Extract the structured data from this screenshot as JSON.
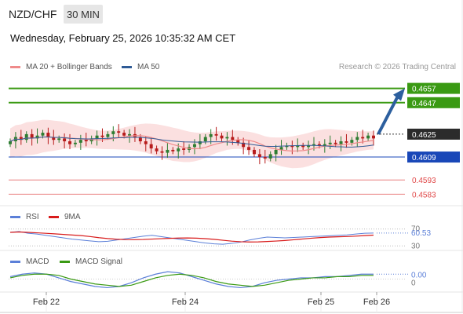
{
  "header": {
    "pair": "NZD/CHF",
    "timeframe": "30 MIN",
    "timestamp": "Wednesday, February 25, 2026 10:35:32 AM CET"
  },
  "legend": {
    "ma20": "MA 20 + Bollinger Bands",
    "ma50": "MA 50",
    "credit": "Research © 2026 Trading Central",
    "rsi": "RSI",
    "rsi_ma": "9MA",
    "macd": "MACD",
    "macd_signal": "MACD Signal"
  },
  "colors": {
    "ma20": "#ef8a8a",
    "ma50": "#2f5b96",
    "bollinger_fill": "#fbe0e0",
    "candle_up": "#2e7d32",
    "candle_down": "#b71c1c",
    "target_line": "#3a9a13",
    "support_blue": "#1947b8",
    "support_red": "#e04848",
    "arrow": "#2c5f9e",
    "rsi": "#5b7fd8",
    "rsi_ma": "#d81b1b",
    "macd": "#5b7fd8",
    "macd_signal": "#3a9a13"
  },
  "chart_data": {
    "type": "candlestick",
    "instrument": "NZD/CHF",
    "interval": "30 MIN",
    "x_ticks": [
      "Feb 22",
      "Feb 24",
      "Feb 25",
      "Feb 26"
    ],
    "y_range": [
      0.4575,
      0.4665
    ],
    "current_price": 0.4625,
    "key_levels": [
      {
        "label": "0.4657",
        "value": 0.4657,
        "kind": "target"
      },
      {
        "label": "0.4647",
        "value": 0.4647,
        "kind": "target"
      },
      {
        "label": "0.4625",
        "value": 0.4625,
        "kind": "current"
      },
      {
        "label": "0.4609",
        "value": 0.4609,
        "kind": "pivot"
      },
      {
        "label": "0.4593",
        "value": 0.4593,
        "kind": "support"
      },
      {
        "label": "0.4583",
        "value": 0.4583,
        "kind": "support"
      }
    ],
    "close_series": [
      0.462,
      0.4623,
      0.4621,
      0.4625,
      0.4622,
      0.4624,
      0.4626,
      0.4623,
      0.4621,
      0.4622,
      0.462,
      0.4618,
      0.4619,
      0.4621,
      0.462,
      0.4622,
      0.4624,
      0.4623,
      0.4625,
      0.4627,
      0.4626,
      0.4624,
      0.4625,
      0.4623,
      0.462,
      0.4618,
      0.4615,
      0.4613,
      0.4612,
      0.4614,
      0.4613,
      0.4615,
      0.4614,
      0.4616,
      0.4618,
      0.462,
      0.4623,
      0.4625,
      0.4624,
      0.4622,
      0.4623,
      0.4621,
      0.4619,
      0.4616,
      0.4614,
      0.4611,
      0.4609,
      0.4608,
      0.4611,
      0.4614,
      0.4616,
      0.4617,
      0.4616,
      0.4617,
      0.4616,
      0.4617,
      0.4618,
      0.4617,
      0.4618,
      0.4619,
      0.4618,
      0.462,
      0.4619,
      0.4621,
      0.4623,
      0.4622,
      0.4624,
      0.4622
    ],
    "rsi": {
      "value_label": "60.53",
      "levels": [
        "70",
        "30"
      ],
      "series": [
        62,
        64,
        60,
        58,
        55,
        52,
        49,
        46,
        44,
        42,
        40,
        41,
        44,
        47,
        50,
        53,
        55,
        52,
        49,
        46,
        43,
        40,
        37,
        35,
        34,
        36,
        39,
        44,
        48,
        51,
        50,
        49,
        50,
        51,
        52,
        53,
        54,
        55,
        56,
        58,
        60,
        60.53
      ]
    },
    "macd": {
      "value_label": "0.00",
      "levels": [
        "0"
      ],
      "macd_series": [
        0.0002,
        0.0004,
        0.0005,
        0.0004,
        0.0001,
        -0.0002,
        -0.0004,
        -0.0006,
        -0.0007,
        -0.0006,
        -0.0003,
        0.0001,
        0.0004,
        0.0006,
        0.0005,
        0.0002,
        -0.0001,
        -0.0004,
        -0.0006,
        -0.0007,
        -0.0006,
        -0.0003,
        -0.0001,
        0.0,
        0.0001,
        0.0001,
        0.0002,
        0.0002,
        0.0003,
        0.0004,
        0.0004
      ],
      "signal_series": [
        0.0001,
        0.0003,
        0.0004,
        0.0004,
        0.0003,
        0.0,
        -0.0002,
        -0.0004,
        -0.0005,
        -0.0006,
        -0.0005,
        -0.0002,
        0.0001,
        0.0003,
        0.0004,
        0.0003,
        0.0001,
        -0.0002,
        -0.0004,
        -0.0005,
        -0.0006,
        -0.0005,
        -0.0003,
        -0.0001,
        0.0,
        0.0001,
        0.0001,
        0.0002,
        0.0002,
        0.0003,
        0.0003
      ]
    }
  }
}
